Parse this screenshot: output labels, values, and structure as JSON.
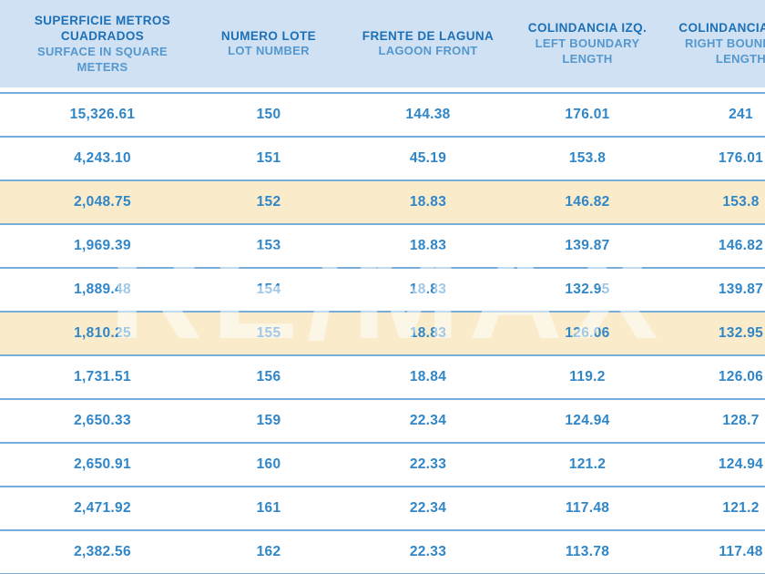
{
  "table": {
    "columns": [
      {
        "id": "surface",
        "label_es": "SUPERFICIE METROS CUADRADOS",
        "label_en": "SURFACE IN SQUARE METERS"
      },
      {
        "id": "lot",
        "label_es": "NUMERO LOTE",
        "label_en": "LOT NUMBER"
      },
      {
        "id": "lagoon",
        "label_es": "FRENTE DE LAGUNA",
        "label_en": "LAGOON FRONT"
      },
      {
        "id": "left",
        "label_es": "COLINDANCIA IZQ.",
        "label_en": "LEFT BOUNDARY LENGTH"
      },
      {
        "id": "right",
        "label_es": "COLINDANCIA DER.",
        "label_en": "RIGHT BOUNDARY LENGTH"
      }
    ],
    "rows": [
      {
        "surface": "15,326.61",
        "lot": "150",
        "lagoon": "144.38",
        "left": "176.01",
        "right": "241",
        "highlight": false
      },
      {
        "surface": "4,243.10",
        "lot": "151",
        "lagoon": "45.19",
        "left": "153.8",
        "right": "176.01",
        "highlight": false
      },
      {
        "surface": "2,048.75",
        "lot": "152",
        "lagoon": "18.83",
        "left": "146.82",
        "right": "153.8",
        "highlight": true
      },
      {
        "surface": "1,969.39",
        "lot": "153",
        "lagoon": "18.83",
        "left": "139.87",
        "right": "146.82",
        "highlight": false
      },
      {
        "surface": "1,889.48",
        "lot": "154",
        "lagoon": "18.83",
        "left": "132.95",
        "right": "139.87",
        "highlight": false
      },
      {
        "surface": "1,810.25",
        "lot": "155",
        "lagoon": "18.83",
        "left": "126.06",
        "right": "132.95",
        "highlight": true
      },
      {
        "surface": "1,731.51",
        "lot": "156",
        "lagoon": "18.84",
        "left": "119.2",
        "right": "126.06",
        "highlight": false
      },
      {
        "surface": "2,650.33",
        "lot": "159",
        "lagoon": "22.34",
        "left": "124.94",
        "right": "128.7",
        "highlight": false
      },
      {
        "surface": "2,650.91",
        "lot": "160",
        "lagoon": "22.33",
        "left": "121.2",
        "right": "124.94",
        "highlight": false
      },
      {
        "surface": "2,471.92",
        "lot": "161",
        "lagoon": "22.34",
        "left": "117.48",
        "right": "121.2",
        "highlight": false
      },
      {
        "surface": "2,382.56",
        "lot": "162",
        "lagoon": "22.33",
        "left": "113.78",
        "right": "117.48",
        "highlight": false
      }
    ]
  },
  "watermark": {
    "text": "RE/MAX"
  },
  "colors": {
    "header_bg": "#cfe1f2",
    "header_text": "#1d70b7",
    "header_subtext": "#5598cf",
    "row_divider": "#79add9",
    "value_text": "#2f86c8",
    "highlight_row_bg": "#faeccb"
  }
}
